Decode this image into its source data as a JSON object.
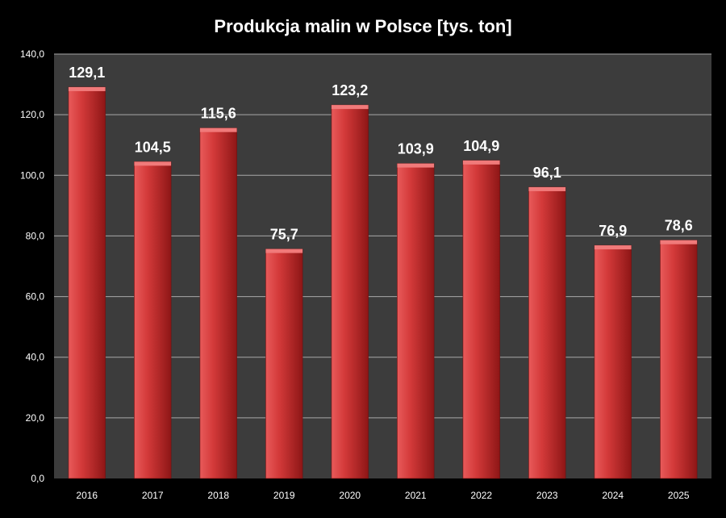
{
  "chart_data": {
    "type": "bar",
    "title": "Produkcja malin w Polsce [tys. ton]",
    "xlabel": "",
    "ylabel": "",
    "categories": [
      "2016",
      "2017",
      "2018",
      "2019",
      "2020",
      "2021",
      "2022",
      "2023",
      "2024",
      "2025"
    ],
    "values": [
      129.1,
      104.5,
      115.6,
      75.7,
      123.2,
      103.9,
      104.9,
      96.1,
      76.9,
      78.6
    ],
    "data_labels": [
      "129,1",
      "104,5",
      "115,6",
      "75,7",
      "123,2",
      "103,9",
      "104,9",
      "96,1",
      "76,9",
      "78,6"
    ],
    "highlight_index": 9,
    "ylim": [
      0,
      140
    ],
    "y_ticks": [
      0,
      20,
      40,
      60,
      80,
      100,
      120,
      140
    ],
    "y_tick_labels": [
      "0,0",
      "20,0",
      "40,0",
      "60,0",
      "80,0",
      "100,0",
      "120,0",
      "140,0"
    ],
    "grid": true,
    "legend": "none"
  },
  "colors": {
    "page_background": "#000000",
    "plot_background": "#3c3c3c",
    "gridline": "#a8a8a8",
    "axis_text": "#ffffff",
    "bar_light": "#e85a5a",
    "bar_mid": "#d43a3a",
    "bar_dark": "#8e1616",
    "bar_top": "#f07a7a",
    "label_default": "#ffffff",
    "label_highlight": "#ff1a1a"
  }
}
